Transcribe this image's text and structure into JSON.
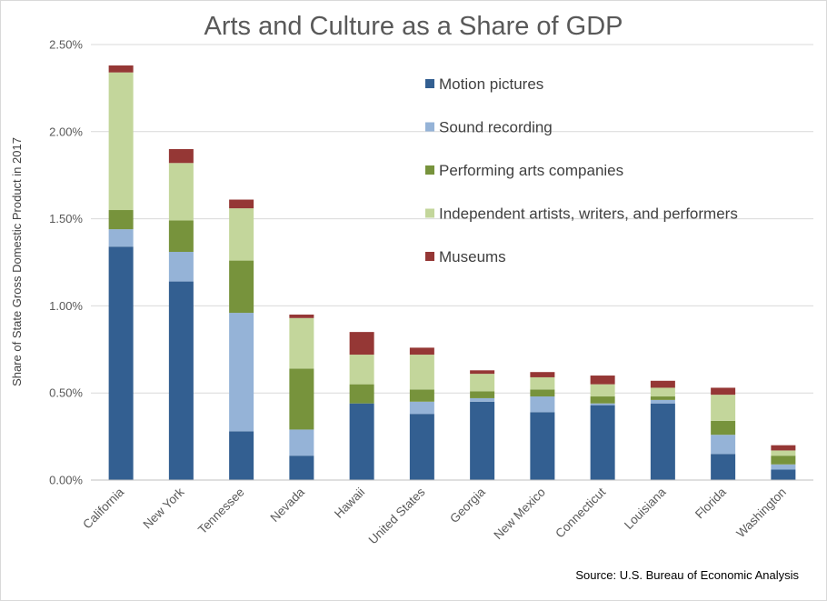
{
  "chart_data": {
    "type": "bar",
    "stacked": true,
    "title": "Arts and Culture as a Share of GDP",
    "ylabel": "Share of State Gross Domestic Product in 2017",
    "xlabel": "",
    "ylim": [
      0,
      2.5
    ],
    "yticks": [
      "0.00%",
      "0.50%",
      "1.00%",
      "1.50%",
      "2.00%",
      "2.50%"
    ],
    "grid": true,
    "legend_position": "top-right",
    "source": "Source: U.S. Bureau of Economic Analysis",
    "categories": [
      "California",
      "New York",
      "Tennessee",
      "Nevada",
      "Hawaii",
      "United States",
      "Georgia",
      "New Mexico",
      "Connecticut",
      "Louisiana",
      "Florida",
      "Washington"
    ],
    "series": [
      {
        "name": "Motion pictures",
        "color": "#335F91",
        "values": [
          1.34,
          1.14,
          0.28,
          0.14,
          0.44,
          0.38,
          0.45,
          0.39,
          0.43,
          0.44,
          0.15,
          0.06
        ]
      },
      {
        "name": "Sound recording",
        "color": "#95B3D7",
        "values": [
          0.1,
          0.17,
          0.68,
          0.15,
          0.0,
          0.07,
          0.02,
          0.09,
          0.01,
          0.02,
          0.11,
          0.03
        ]
      },
      {
        "name": "Performing arts companies",
        "color": "#77933C",
        "values": [
          0.11,
          0.18,
          0.3,
          0.35,
          0.11,
          0.07,
          0.04,
          0.04,
          0.04,
          0.02,
          0.08,
          0.05
        ]
      },
      {
        "name": "Independent artists, writers, and performers",
        "color": "#C3D69B",
        "values": [
          0.79,
          0.33,
          0.3,
          0.29,
          0.17,
          0.2,
          0.1,
          0.07,
          0.07,
          0.05,
          0.15,
          0.03
        ]
      },
      {
        "name": "Museums",
        "color": "#953735",
        "values": [
          0.04,
          0.08,
          0.05,
          0.02,
          0.13,
          0.04,
          0.02,
          0.03,
          0.05,
          0.04,
          0.04,
          0.03
        ]
      }
    ]
  }
}
